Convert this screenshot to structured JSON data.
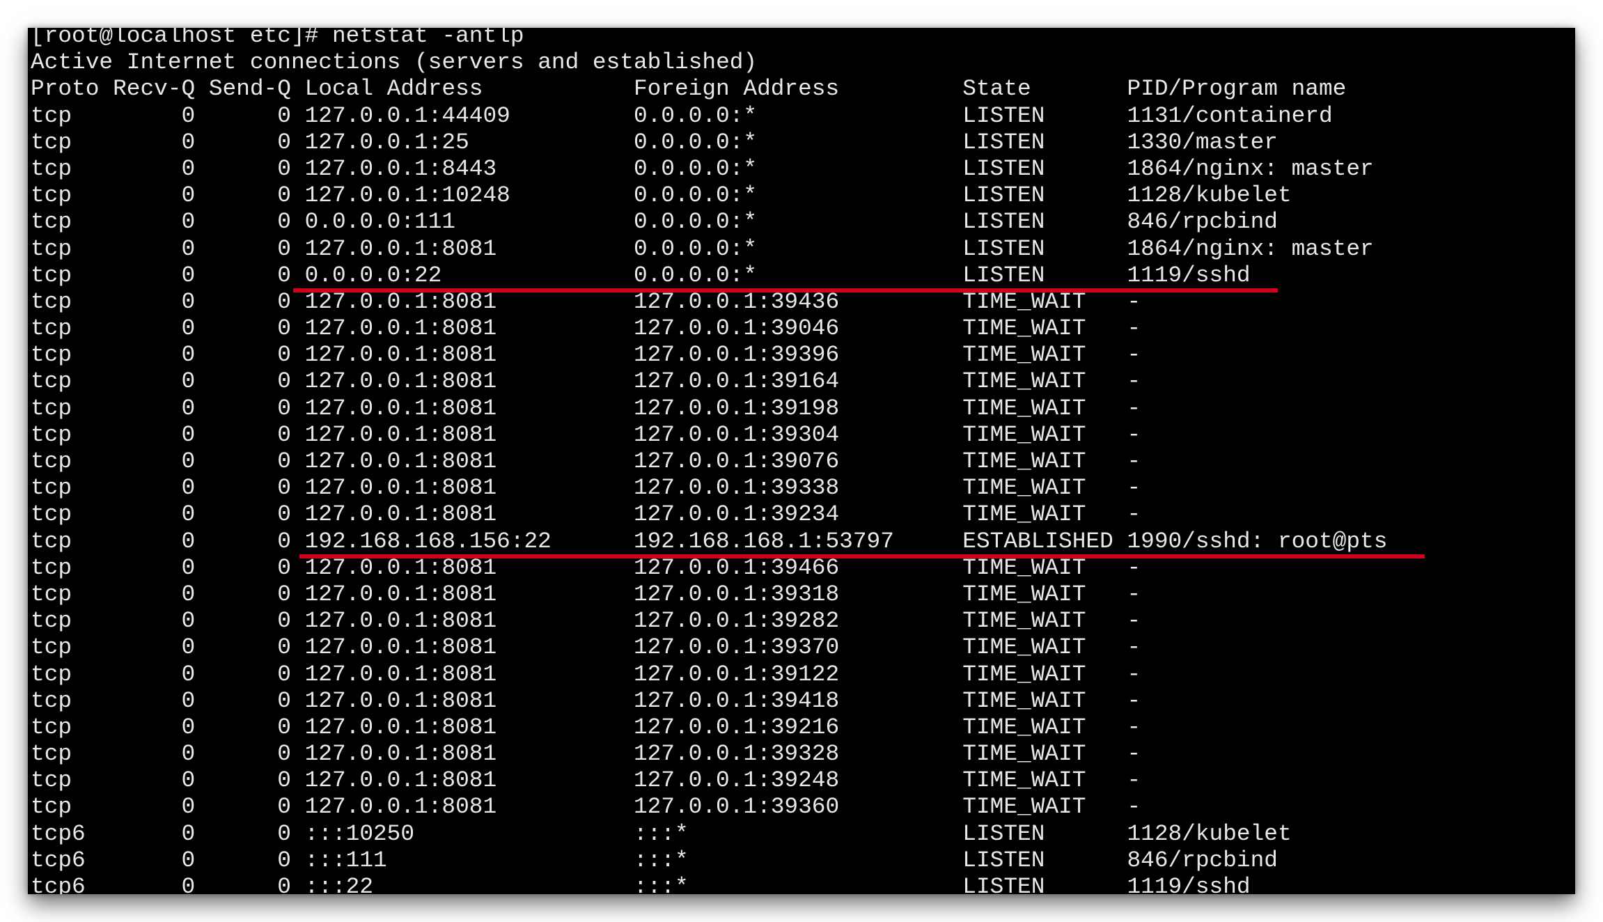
{
  "terminal": {
    "prompt": "[root@localhost etc]# netstat -antlp",
    "summary": "Active Internet connections (servers and established)",
    "headers": {
      "proto": "Proto",
      "recv": "Recv-Q",
      "send": "Send-Q",
      "local": "Local Address",
      "foreign": "Foreign Address",
      "state": "State",
      "pid": "PID/Program name"
    },
    "rows": [
      {
        "proto": "tcp",
        "recv": "0",
        "send": "0",
        "local": "127.0.0.1:44409",
        "foreign": "0.0.0.0:*",
        "state": "LISTEN",
        "pid": "1131/containerd"
      },
      {
        "proto": "tcp",
        "recv": "0",
        "send": "0",
        "local": "127.0.0.1:25",
        "foreign": "0.0.0.0:*",
        "state": "LISTEN",
        "pid": "1330/master"
      },
      {
        "proto": "tcp",
        "recv": "0",
        "send": "0",
        "local": "127.0.0.1:8443",
        "foreign": "0.0.0.0:*",
        "state": "LISTEN",
        "pid": "1864/nginx: master"
      },
      {
        "proto": "tcp",
        "recv": "0",
        "send": "0",
        "local": "127.0.0.1:10248",
        "foreign": "0.0.0.0:*",
        "state": "LISTEN",
        "pid": "1128/kubelet"
      },
      {
        "proto": "tcp",
        "recv": "0",
        "send": "0",
        "local": "0.0.0.0:111",
        "foreign": "0.0.0.0:*",
        "state": "LISTEN",
        "pid": "846/rpcbind"
      },
      {
        "proto": "tcp",
        "recv": "0",
        "send": "0",
        "local": "127.0.0.1:8081",
        "foreign": "0.0.0.0:*",
        "state": "LISTEN",
        "pid": "1864/nginx: master"
      },
      {
        "proto": "tcp",
        "recv": "0",
        "send": "0",
        "local": "0.0.0.0:22",
        "foreign": "0.0.0.0:*",
        "state": "LISTEN",
        "pid": "1119/sshd"
      },
      {
        "proto": "tcp",
        "recv": "0",
        "send": "0",
        "local": "127.0.0.1:8081",
        "foreign": "127.0.0.1:39436",
        "state": "TIME_WAIT",
        "pid": "-"
      },
      {
        "proto": "tcp",
        "recv": "0",
        "send": "0",
        "local": "127.0.0.1:8081",
        "foreign": "127.0.0.1:39046",
        "state": "TIME_WAIT",
        "pid": "-"
      },
      {
        "proto": "tcp",
        "recv": "0",
        "send": "0",
        "local": "127.0.0.1:8081",
        "foreign": "127.0.0.1:39396",
        "state": "TIME_WAIT",
        "pid": "-"
      },
      {
        "proto": "tcp",
        "recv": "0",
        "send": "0",
        "local": "127.0.0.1:8081",
        "foreign": "127.0.0.1:39164",
        "state": "TIME_WAIT",
        "pid": "-"
      },
      {
        "proto": "tcp",
        "recv": "0",
        "send": "0",
        "local": "127.0.0.1:8081",
        "foreign": "127.0.0.1:39198",
        "state": "TIME_WAIT",
        "pid": "-"
      },
      {
        "proto": "tcp",
        "recv": "0",
        "send": "0",
        "local": "127.0.0.1:8081",
        "foreign": "127.0.0.1:39304",
        "state": "TIME_WAIT",
        "pid": "-"
      },
      {
        "proto": "tcp",
        "recv": "0",
        "send": "0",
        "local": "127.0.0.1:8081",
        "foreign": "127.0.0.1:39076",
        "state": "TIME_WAIT",
        "pid": "-"
      },
      {
        "proto": "tcp",
        "recv": "0",
        "send": "0",
        "local": "127.0.0.1:8081",
        "foreign": "127.0.0.1:39338",
        "state": "TIME_WAIT",
        "pid": "-"
      },
      {
        "proto": "tcp",
        "recv": "0",
        "send": "0",
        "local": "127.0.0.1:8081",
        "foreign": "127.0.0.1:39234",
        "state": "TIME_WAIT",
        "pid": "-"
      },
      {
        "proto": "tcp",
        "recv": "0",
        "send": "0",
        "local": "192.168.168.156:22",
        "foreign": "192.168.168.1:53797",
        "state": "ESTABLISHED",
        "pid": "1990/sshd: root@pts"
      },
      {
        "proto": "tcp",
        "recv": "0",
        "send": "0",
        "local": "127.0.0.1:8081",
        "foreign": "127.0.0.1:39466",
        "state": "TIME_WAIT",
        "pid": "-"
      },
      {
        "proto": "tcp",
        "recv": "0",
        "send": "0",
        "local": "127.0.0.1:8081",
        "foreign": "127.0.0.1:39318",
        "state": "TIME_WAIT",
        "pid": "-"
      },
      {
        "proto": "tcp",
        "recv": "0",
        "send": "0",
        "local": "127.0.0.1:8081",
        "foreign": "127.0.0.1:39282",
        "state": "TIME_WAIT",
        "pid": "-"
      },
      {
        "proto": "tcp",
        "recv": "0",
        "send": "0",
        "local": "127.0.0.1:8081",
        "foreign": "127.0.0.1:39370",
        "state": "TIME_WAIT",
        "pid": "-"
      },
      {
        "proto": "tcp",
        "recv": "0",
        "send": "0",
        "local": "127.0.0.1:8081",
        "foreign": "127.0.0.1:39122",
        "state": "TIME_WAIT",
        "pid": "-"
      },
      {
        "proto": "tcp",
        "recv": "0",
        "send": "0",
        "local": "127.0.0.1:8081",
        "foreign": "127.0.0.1:39418",
        "state": "TIME_WAIT",
        "pid": "-"
      },
      {
        "proto": "tcp",
        "recv": "0",
        "send": "0",
        "local": "127.0.0.1:8081",
        "foreign": "127.0.0.1:39216",
        "state": "TIME_WAIT",
        "pid": "-"
      },
      {
        "proto": "tcp",
        "recv": "0",
        "send": "0",
        "local": "127.0.0.1:8081",
        "foreign": "127.0.0.1:39328",
        "state": "TIME_WAIT",
        "pid": "-"
      },
      {
        "proto": "tcp",
        "recv": "0",
        "send": "0",
        "local": "127.0.0.1:8081",
        "foreign": "127.0.0.1:39248",
        "state": "TIME_WAIT",
        "pid": "-"
      },
      {
        "proto": "tcp",
        "recv": "0",
        "send": "0",
        "local": "127.0.0.1:8081",
        "foreign": "127.0.0.1:39360",
        "state": "TIME_WAIT",
        "pid": "-"
      },
      {
        "proto": "tcp6",
        "recv": "0",
        "send": "0",
        "local": ":::10250",
        "foreign": ":::*",
        "state": "LISTEN",
        "pid": "1128/kubelet"
      },
      {
        "proto": "tcp6",
        "recv": "0",
        "send": "0",
        "local": ":::111",
        "foreign": ":::*",
        "state": "LISTEN",
        "pid": "846/rpcbind"
      },
      {
        "proto": "tcp6",
        "recv": "0",
        "send": "0",
        "local": ":::22",
        "foreign": ":::*",
        "state": "LISTEN",
        "pid": "1119/sshd"
      }
    ],
    "annotation_color": "#d0021b"
  }
}
